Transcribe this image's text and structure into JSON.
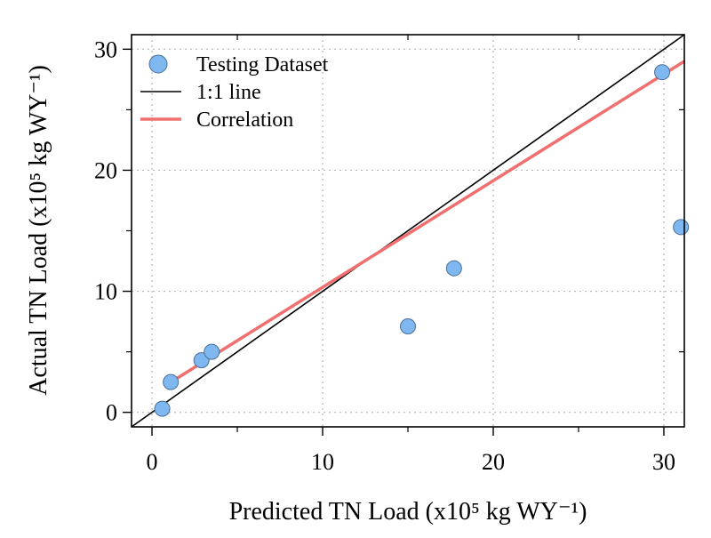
{
  "chart_data": {
    "type": "scatter",
    "xlabel": "Predicted TN Load (x10⁵ kg WY⁻¹)",
    "ylabel": "Actual TN Load (x10⁵ kg WY⁻¹)",
    "xlim": [
      -1.2,
      31.2
    ],
    "ylim": [
      -1.2,
      31.2
    ],
    "x_ticks": [
      0,
      10,
      20,
      30
    ],
    "y_ticks": [
      0,
      10,
      20,
      30
    ],
    "minor_x_ticks": [
      5,
      15,
      25
    ],
    "minor_y_ticks": [
      5,
      15,
      25
    ],
    "x_tick_labels": [
      "0",
      "10",
      "20",
      "30"
    ],
    "y_tick_labels": [
      "0",
      "10",
      "20",
      "30"
    ],
    "grid": true,
    "legend_position": "top-left",
    "series": [
      {
        "name": "Testing Dataset",
        "kind": "points",
        "color": "#7fb8f0",
        "points": [
          {
            "x": 0.6,
            "y": 0.3
          },
          {
            "x": 1.1,
            "y": 2.5
          },
          {
            "x": 2.9,
            "y": 4.3
          },
          {
            "x": 3.5,
            "y": 5.0
          },
          {
            "x": 15.0,
            "y": 7.1
          },
          {
            "x": 17.7,
            "y": 11.9
          },
          {
            "x": 29.9,
            "y": 28.1
          },
          {
            "x": 31.0,
            "y": 15.3
          }
        ]
      },
      {
        "name": "1:1 line",
        "kind": "line",
        "color": "#000000",
        "points": [
          {
            "x": -1.2,
            "y": -1.2
          },
          {
            "x": 31.2,
            "y": 31.2
          }
        ]
      },
      {
        "name": "Correlation",
        "kind": "line",
        "color": "#f07070",
        "points": [
          {
            "x": 1.0,
            "y": 2.4
          },
          {
            "x": 31.2,
            "y": 29.0
          }
        ]
      }
    ]
  }
}
